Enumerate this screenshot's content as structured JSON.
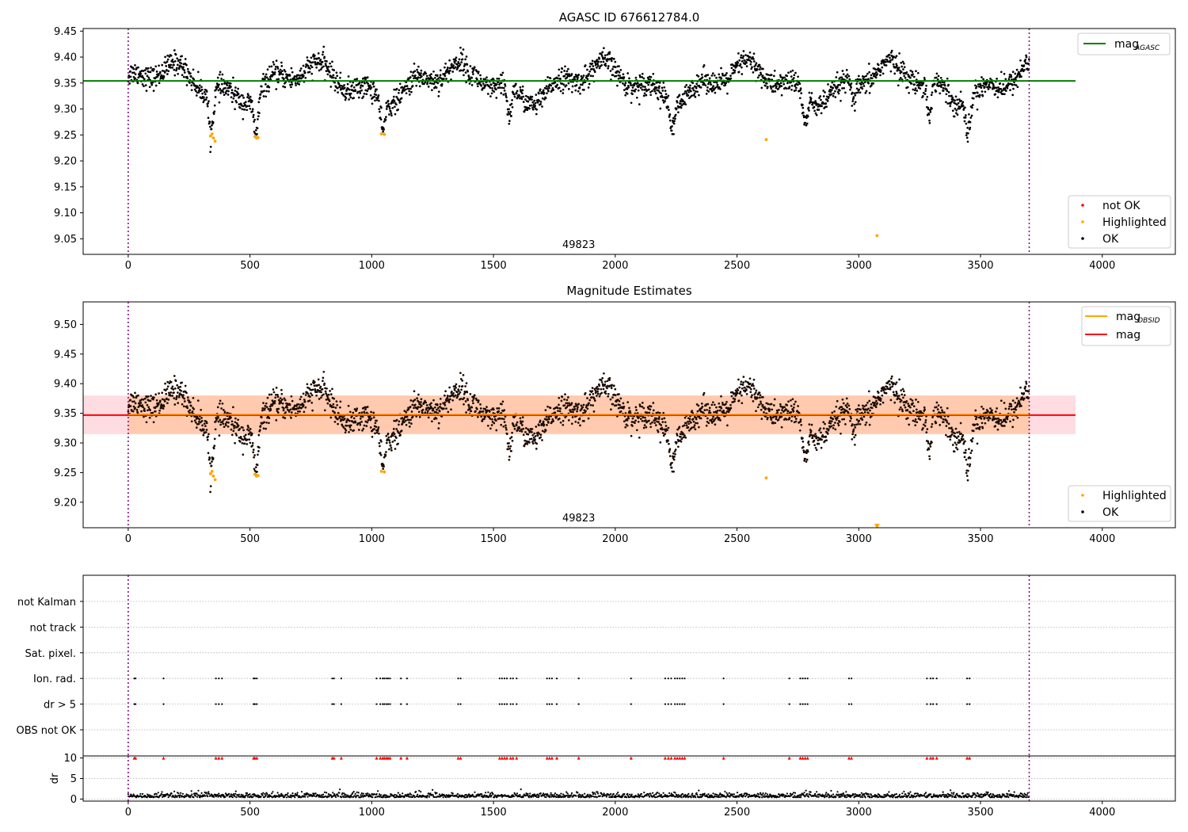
{
  "chart_data": [
    {
      "type": "scatter",
      "title": "AGASC ID 676612784.0",
      "xlim": [
        -185,
        4300
      ],
      "ylim": [
        9.02,
        9.455
      ],
      "x_ticks": [
        0,
        500,
        1000,
        1500,
        2000,
        2500,
        3000,
        3500,
        4000
      ],
      "y_ticks": [
        9.05,
        9.1,
        9.15,
        9.2,
        9.25,
        9.3,
        9.35,
        9.4,
        9.45
      ],
      "y_tick_labels": [
        "9.05",
        "9.10",
        "9.15",
        "9.20",
        "9.25",
        "9.30",
        "9.35",
        "9.40",
        "9.45"
      ],
      "obsid_label": "49823",
      "obsid_label_x": 1850,
      "obsid_boundaries": [
        0,
        3700
      ],
      "reference_line": {
        "name": "mag",
        "subscript": "AGASC",
        "y": 9.354,
        "x_range": [
          -185,
          3890
        ],
        "color": "#008000"
      },
      "legend_top": [
        {
          "label": "mag",
          "subscript": "AGASC",
          "kind": "line",
          "color": "#008000"
        }
      ],
      "legend_bottom": [
        {
          "label": "not OK",
          "kind": "marker",
          "color": "#ff0000"
        },
        {
          "label": "Highlighted",
          "kind": "marker",
          "color": "#ffa500"
        },
        {
          "label": "OK",
          "kind": "marker",
          "color": "#000000"
        }
      ],
      "highlighted_points": [
        {
          "x": 338,
          "y": 9.248
        },
        {
          "x": 344,
          "y": 9.252
        },
        {
          "x": 350,
          "y": 9.244
        },
        {
          "x": 357,
          "y": 9.238
        },
        {
          "x": 520,
          "y": 9.247
        },
        {
          "x": 527,
          "y": 9.244
        },
        {
          "x": 533,
          "y": 9.245
        },
        {
          "x": 1040,
          "y": 9.252
        },
        {
          "x": 1052,
          "y": 9.251
        },
        {
          "x": 2620,
          "y": 9.241
        },
        {
          "x": 3075,
          "y": 9.056
        }
      ]
    },
    {
      "type": "scatter",
      "title": "Magnitude Estimates",
      "xlim": [
        -185,
        4300
      ],
      "ylim": [
        9.157,
        9.538
      ],
      "x_ticks": [
        0,
        500,
        1000,
        1500,
        2000,
        2500,
        3000,
        3500,
        4000
      ],
      "y_ticks": [
        9.2,
        9.25,
        9.3,
        9.35,
        9.4,
        9.45,
        9.5
      ],
      "y_tick_labels": [
        "9.20",
        "9.25",
        "9.30",
        "9.35",
        "9.40",
        "9.45",
        "9.50"
      ],
      "obsid_label": "49823",
      "obsid_label_x": 1850,
      "obsid_boundaries": [
        0,
        3700
      ],
      "mag_line": {
        "y": 9.347,
        "x_range": [
          -185,
          3890
        ],
        "color": "#ff0000"
      },
      "mag_obsid_line": {
        "y": 9.347,
        "x_range": [
          0,
          3700
        ],
        "color": "#ffa500"
      },
      "mag_band": {
        "y_low": 9.315,
        "y_high": 9.38,
        "x_range": [
          -185,
          3890
        ],
        "color": "#ffc0c8"
      },
      "mag_obsid_band": {
        "y_low": 9.315,
        "y_high": 9.38,
        "x_range": [
          0,
          3700
        ],
        "color": "#ffc29a"
      },
      "legend_top": [
        {
          "label": "mag",
          "subscript": "OBSID",
          "kind": "line",
          "color": "#ffa500"
        },
        {
          "label": "mag",
          "subscript": "",
          "kind": "line",
          "color": "#ff0000"
        }
      ],
      "legend_bottom": [
        {
          "label": "Highlighted",
          "kind": "marker",
          "color": "#ffa500"
        },
        {
          "label": "OK",
          "kind": "marker",
          "color": "#000000"
        }
      ],
      "highlighted_points": [
        {
          "x": 338,
          "y": 9.248
        },
        {
          "x": 344,
          "y": 9.252
        },
        {
          "x": 350,
          "y": 9.244
        },
        {
          "x": 357,
          "y": 9.238
        },
        {
          "x": 520,
          "y": 9.247
        },
        {
          "x": 527,
          "y": 9.244
        },
        {
          "x": 533,
          "y": 9.245
        },
        {
          "x": 1040,
          "y": 9.252
        },
        {
          "x": 1052,
          "y": 9.251
        },
        {
          "x": 2620,
          "y": 9.241
        },
        {
          "x": 3075,
          "y": 9.16
        }
      ]
    },
    {
      "type": "scatter",
      "title": "",
      "xlim": [
        -185,
        4300
      ],
      "flag_rows": [
        "not Kalman",
        "not track",
        "Sat. pixel.",
        "Ion. rad.",
        "dr > 5",
        "OBS not OK"
      ],
      "flag_times": [
        25,
        30,
        145,
        360,
        372,
        385,
        515,
        520,
        528,
        838,
        845,
        875,
        1020,
        1035,
        1045,
        1052,
        1060,
        1067,
        1075,
        1120,
        1145,
        1355,
        1365,
        1525,
        1535,
        1545,
        1555,
        1570,
        1580,
        1595,
        1720,
        1730,
        1740,
        1760,
        1850,
        2065,
        2205,
        2218,
        2230,
        2245,
        2255,
        2265,
        2275,
        2285,
        2445,
        2715,
        2760,
        2770,
        2780,
        2790,
        2960,
        2970,
        3280,
        3295,
        3305,
        3320,
        3445,
        3455
      ],
      "obsid_boundaries": [
        0,
        3700
      ],
      "dr_ylabel": "dr",
      "dr_ylim": [
        -0.5,
        10.5
      ],
      "dr_y_ticks": [
        0,
        5,
        10
      ],
      "dr_y_tick_labels": [
        "0",
        "5",
        "10"
      ],
      "x_ticks": [
        0,
        500,
        1000,
        1500,
        2000,
        2500,
        3000,
        3500,
        4000
      ]
    }
  ]
}
